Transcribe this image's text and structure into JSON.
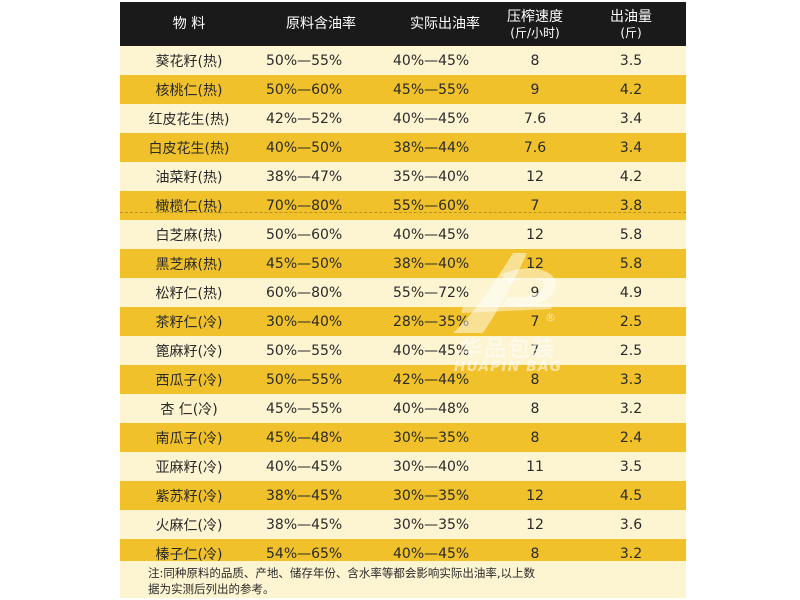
{
  "header": {
    "col_material": "物 料",
    "col_oil_content": "原料含油率",
    "col_actual_yield": "实际出油率",
    "col_press_speed": "压榨速度",
    "col_press_speed_unit": "(斤/小时)",
    "col_oil_output": "出油量",
    "col_oil_output_unit": "(斤)"
  },
  "rows": [
    {
      "material": "葵花籽(热)",
      "oil_content": "50%—55%",
      "actual_yield": "40%—45%",
      "speed": "8",
      "output": "3.5"
    },
    {
      "material": "核桃仁(热)",
      "oil_content": "50%—60%",
      "actual_yield": "45%—55%",
      "speed": "9",
      "output": "4.2"
    },
    {
      "material": "红皮花生(热)",
      "oil_content": "42%—52%",
      "actual_yield": "40%—45%",
      "speed": "7.6",
      "output": "3.4"
    },
    {
      "material": "白皮花生(热)",
      "oil_content": "40%—50%",
      "actual_yield": "38%—44%",
      "speed": "7.6",
      "output": "3.4"
    },
    {
      "material": "油菜籽(热)",
      "oil_content": "38%—47%",
      "actual_yield": "35%—40%",
      "speed": "12",
      "output": "4.2"
    },
    {
      "material": "橄榄仁(热)",
      "oil_content": "70%—80%",
      "actual_yield": "55%—60%",
      "speed": "7",
      "output": "3.8"
    },
    {
      "material": "白芝麻(热)",
      "oil_content": "50%—60%",
      "actual_yield": "40%—45%",
      "speed": "12",
      "output": "5.8"
    },
    {
      "material": "黑芝麻(热)",
      "oil_content": "45%—50%",
      "actual_yield": "38%—40%",
      "speed": "12",
      "output": "5.8"
    },
    {
      "material": "松籽仁(热)",
      "oil_content": "60%—80%",
      "actual_yield": "55%—72%",
      "speed": "9",
      "output": "4.9"
    },
    {
      "material": "茶籽仁(冷)",
      "oil_content": "30%—40%",
      "actual_yield": "28%—35%",
      "speed": "7",
      "output": "2.5"
    },
    {
      "material": "篦麻籽(冷)",
      "oil_content": "50%—55%",
      "actual_yield": "40%—45%",
      "speed": "7",
      "output": "2.5"
    },
    {
      "material": "西瓜子(冷)",
      "oil_content": "50%—55%",
      "actual_yield": "42%—44%",
      "speed": "8",
      "output": "3.3"
    },
    {
      "material": "杏 仁(冷)",
      "oil_content": "45%—55%",
      "actual_yield": "40%—48%",
      "speed": "8",
      "output": "3.2"
    },
    {
      "material": "南瓜子(冷)",
      "oil_content": "45%—48%",
      "actual_yield": "30%—35%",
      "speed": "8",
      "output": "2.4"
    },
    {
      "material": "亚麻籽(冷)",
      "oil_content": "40%—45%",
      "actual_yield": "30%—40%",
      "speed": "11",
      "output": "3.5"
    },
    {
      "material": "紫苏籽(冷)",
      "oil_content": "38%—45%",
      "actual_yield": "30%—35%",
      "speed": "12",
      "output": "4.5"
    },
    {
      "material": "火麻仁(冷)",
      "oil_content": "38%—45%",
      "actual_yield": "30%—35%",
      "speed": "12",
      "output": "3.6"
    },
    {
      "material": "榛子仁(冷)",
      "oil_content": "54%—65%",
      "actual_yield": "40%—45%",
      "speed": "8",
      "output": "3.2"
    }
  ],
  "note": {
    "line1": "注:同种原料的品质、产地、储存年份、含水率等都会影响实际出油率,以上数",
    "line2": "据为实测后列出的参考。"
  },
  "watermark": {
    "brand_cn": "华品包装",
    "brand_en": "HUAPIN BAG",
    "registered_mark": "®"
  },
  "colors": {
    "header_bg": "#1a1a1a",
    "row_light": "#fdf4d1",
    "row_gold": "#f0c12a"
  }
}
